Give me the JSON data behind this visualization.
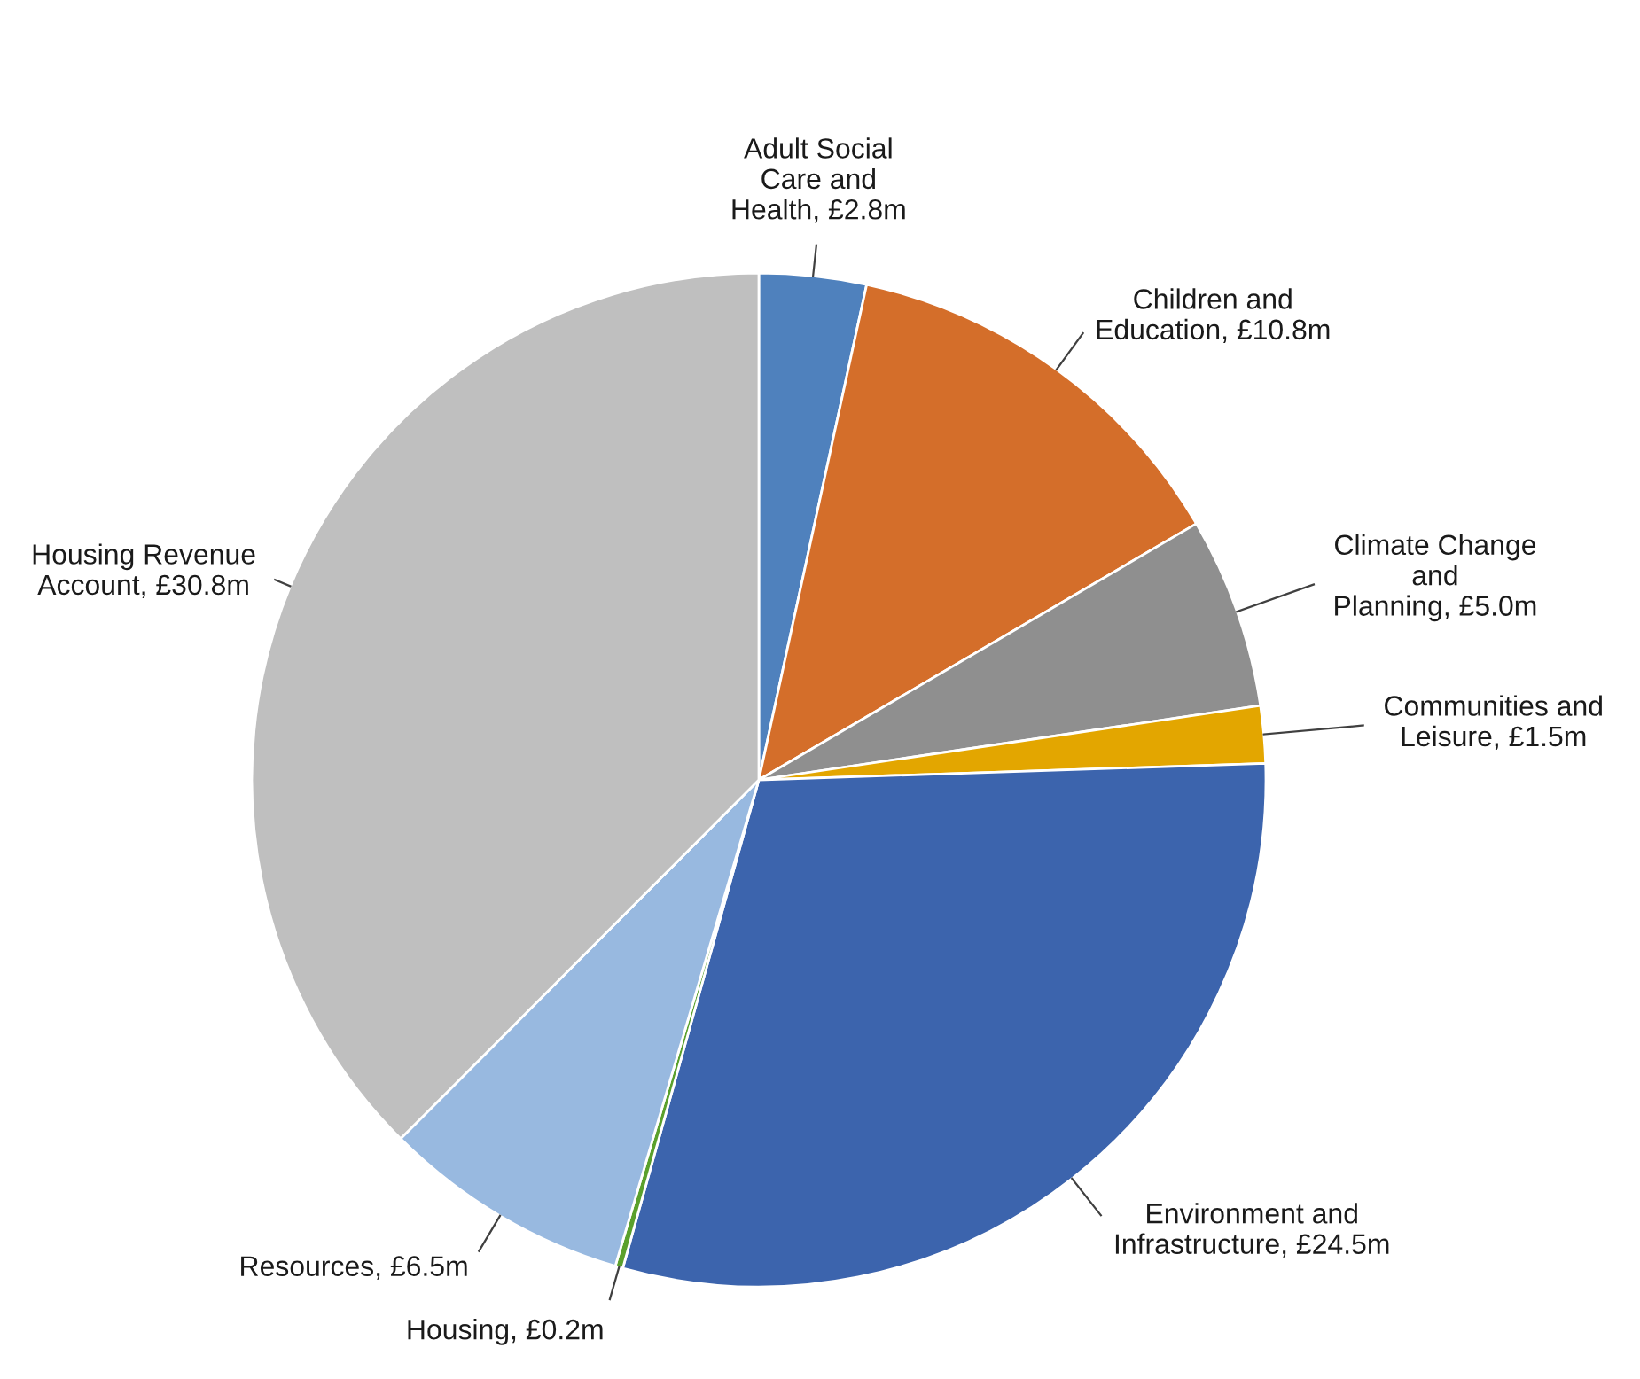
{
  "chart_data": {
    "type": "pie",
    "categories": [
      "Adult Social Care and Health",
      "Children and Education",
      "Climate Change and Planning",
      "Communities and Leisure",
      "Environment and Infrastructure",
      "Housing",
      "Resources",
      "Housing Revenue Account"
    ],
    "values": [
      2.8,
      10.8,
      5.0,
      1.5,
      24.5,
      0.2,
      6.5,
      30.8
    ],
    "colors": [
      "#4f81bd",
      "#d46e2a",
      "#8f8f8f",
      "#e3a600",
      "#3c64ad",
      "#5aa02c",
      "#98b9e0",
      "#bfbfbf"
    ],
    "value_labels": [
      "£2.8m",
      "£10.8m",
      "£5.0m",
      "£1.5m",
      "£24.5m",
      "£0.2m",
      "£6.5m",
      "£30.8m"
    ]
  }
}
